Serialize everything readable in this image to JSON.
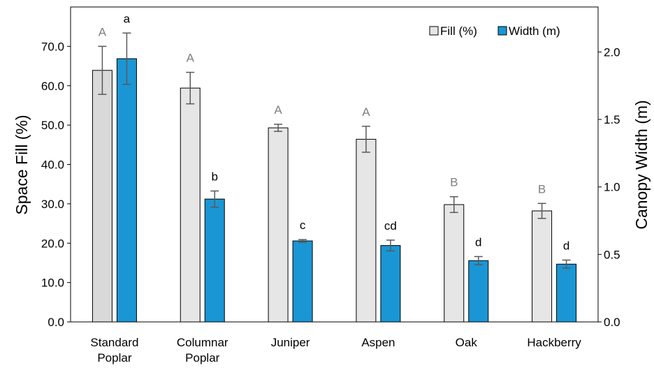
{
  "chart_data": {
    "type": "bar",
    "categories": [
      [
        "Standard",
        "Poplar"
      ],
      [
        "Columnar",
        "Poplar"
      ],
      [
        "Juniper"
      ],
      [
        "Aspen"
      ],
      [
        "Oak"
      ],
      [
        "Hackberry"
      ]
    ],
    "series": [
      {
        "name": "Fill (%)",
        "axis": "left",
        "color": "#e6e6e6",
        "first_bar_color": "#d9d9d9",
        "values": [
          63.9,
          59.4,
          49.3,
          46.4,
          29.8,
          28.2
        ],
        "error": [
          6.1,
          4.0,
          0.9,
          3.3,
          2.0,
          1.9
        ],
        "letters": [
          "A",
          "A",
          "A",
          "A",
          "B",
          "B"
        ],
        "letter_color": "#7f7f7f"
      },
      {
        "name": "Width (m)",
        "axis": "right",
        "color": "#1a96d4",
        "values": [
          1.95,
          0.91,
          0.6,
          0.566,
          0.454,
          0.428
        ],
        "error": [
          0.19,
          0.06,
          0.01,
          0.04,
          0.03,
          0.03
        ],
        "letters": [
          "a",
          "b",
          "c",
          "cd",
          "d",
          "d"
        ],
        "letter_color": "#000000"
      }
    ],
    "ylabel": "Space Fill (%)",
    "y2label": "Canopy Width (m)",
    "ylim": [
      0,
      80
    ],
    "y2lim": [
      0,
      2.333
    ],
    "yticks": [
      "0.0",
      "10.0",
      "20.0",
      "30.0",
      "40.0",
      "50.0",
      "60.0",
      "70.0"
    ],
    "y2ticks": [
      "0.0",
      "0.5",
      "1.0",
      "1.5",
      "2.0"
    ],
    "legend_position": "top-right",
    "grid": false
  }
}
